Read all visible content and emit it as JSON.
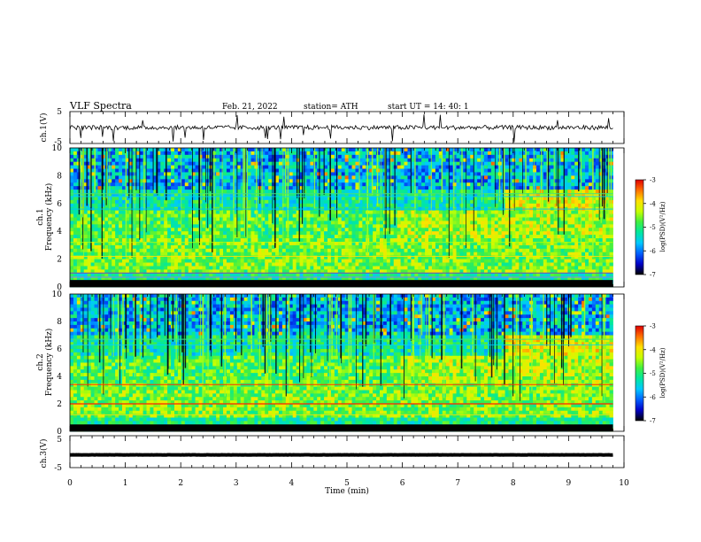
{
  "header": {
    "title": "VLF  Spectra",
    "date": "Feb. 21, 2022",
    "station": "station= ATH",
    "start": "start  UT  =   14: 40: 1"
  },
  "chart_data": [
    {
      "type": "line",
      "name": "ch1-waveform",
      "ylabel": "ch.1(V)",
      "ylim": [
        -5,
        5
      ],
      "yticks": [
        "5",
        "-5"
      ],
      "xlim": [
        0,
        10
      ],
      "baseline": 0,
      "data_end_min": 9.8
    },
    {
      "type": "heatmap",
      "name": "ch1-spectrogram",
      "ylabel": "ch.1\nFrequency (kHz)",
      "ylabel_lines": [
        "ch.1",
        "Frequency (kHz)"
      ],
      "ylim": [
        0,
        10
      ],
      "yticks": [
        "0",
        "2",
        "4",
        "6",
        "8",
        "10"
      ],
      "xlim": [
        0,
        10
      ],
      "data_end_min": 9.8,
      "colorbar": {
        "label": "log(PSD)(V²/Hz)",
        "range": [
          -7,
          -3
        ],
        "ticks": [
          "-3",
          "-4",
          "-5",
          "-6",
          "-7"
        ]
      }
    },
    {
      "type": "heatmap",
      "name": "ch2-spectrogram",
      "ylabel": "ch.2\nFrequency (kHz)",
      "ylabel_lines": [
        "ch.2",
        "Frequency (kHz)"
      ],
      "ylim": [
        0,
        10
      ],
      "yticks": [
        "0",
        "2",
        "4",
        "6",
        "8",
        "10"
      ],
      "xlim": [
        0,
        10
      ],
      "data_end_min": 9.8,
      "colorbar": {
        "label": "log(PSD)(V²/Hz)",
        "range": [
          -7,
          -3
        ],
        "ticks": [
          "-3",
          "-4",
          "-5",
          "-6",
          "-7"
        ]
      }
    },
    {
      "type": "line",
      "name": "ch3-waveform",
      "ylabel": "ch.3(V)",
      "ylim": [
        -5,
        5
      ],
      "yticks": [
        "5",
        "-5"
      ],
      "xlim": [
        0,
        10
      ],
      "baseline": -1,
      "data_end_min": 9.8
    }
  ],
  "xaxis": {
    "label": "Time  (min)",
    "ticks": [
      "0",
      "1",
      "2",
      "3",
      "4",
      "5",
      "6",
      "7",
      "8",
      "9",
      "10"
    ]
  },
  "colors": {
    "trace": "#000000",
    "colormap": [
      "#000000",
      "#0000c8",
      "#0060ff",
      "#00c8ff",
      "#00e8a0",
      "#40f040",
      "#c8ff00",
      "#ffe000",
      "#ff7000",
      "#e00000",
      "#ffffff"
    ]
  }
}
